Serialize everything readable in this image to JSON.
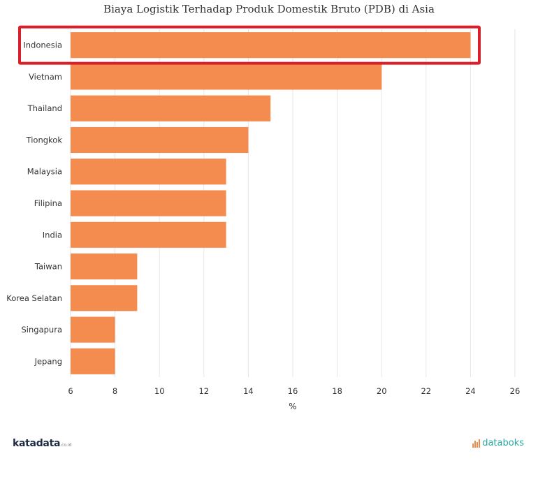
{
  "chart_data": {
    "type": "bar",
    "orientation": "horizontal",
    "title": "Biaya Logistik Terhadap Produk Domestik Bruto (PDB) di Asia",
    "xlabel": "%",
    "ylabel": "",
    "categories": [
      "Indonesia",
      "Vietnam",
      "Thailand",
      "Tiongkok",
      "Malaysia",
      "Filipina",
      "India",
      "Taiwan",
      "Korea Selatan",
      "Singapura",
      "Jepang"
    ],
    "values": [
      24,
      20,
      15,
      14,
      13,
      13,
      13,
      9,
      9,
      8,
      8
    ],
    "xlim": [
      6,
      26
    ],
    "xticks": [
      6,
      8,
      10,
      12,
      14,
      16,
      18,
      20,
      22,
      24,
      26
    ],
    "grid": "vertical",
    "legend": "none",
    "highlight": "Indonesia"
  },
  "colors": {
    "bar": "#f48c4f",
    "highlight_box": "#d9202a",
    "grid": "#e6e6e6"
  },
  "logos": {
    "left_main": "katadata",
    "left_suffix": ".co.id",
    "right": "databoks"
  }
}
